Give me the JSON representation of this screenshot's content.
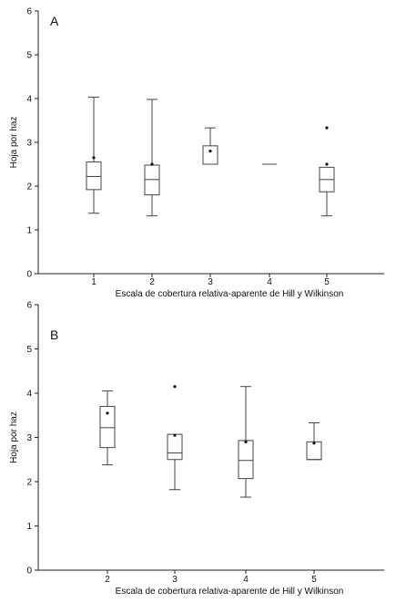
{
  "chart_data": [
    {
      "type": "box",
      "panel_label": "A",
      "xlabel": "Escala de cobertura relativa-aparente de Hill y Wilkinson",
      "ylabel": "Hoja por haz",
      "ylim": [
        0,
        6
      ],
      "y_ticks": [
        "0",
        "1",
        "2",
        "3",
        "4",
        "5",
        "6"
      ],
      "categories": [
        "1",
        "2",
        "3",
        "4",
        "5"
      ],
      "boxes": [
        {
          "category": "1",
          "min": 1.38,
          "q1": 1.92,
          "median": 2.22,
          "q3": 2.55,
          "max": 4.03,
          "mean": 2.65,
          "outliers": []
        },
        {
          "category": "2",
          "min": 1.32,
          "q1": 1.8,
          "median": 2.15,
          "q3": 2.48,
          "max": 3.98,
          "mean": 2.5,
          "outliers": []
        },
        {
          "category": "3",
          "min": 2.5,
          "q1": 2.5,
          "median": 2.5,
          "q3": 2.92,
          "max": 3.33,
          "mean": 2.8,
          "outliers": []
        },
        {
          "category": "4",
          "min": 2.5,
          "q1": 2.5,
          "median": 2.5,
          "q3": 2.5,
          "max": 2.5,
          "mean": null,
          "outliers": []
        },
        {
          "category": "5",
          "min": 1.32,
          "q1": 1.87,
          "median": 2.15,
          "q3": 2.43,
          "max": 2.43,
          "mean": null,
          "outliers": [
            2.5,
            3.33
          ]
        }
      ]
    },
    {
      "type": "box",
      "panel_label": "B",
      "xlabel": "Escala de cobertura relativa-aparente de Hill y Wilkinson",
      "ylabel": "Hoja por haz",
      "ylim": [
        0,
        6
      ],
      "y_ticks": [
        "0",
        "1",
        "2",
        "3",
        "4",
        "5",
        "6"
      ],
      "categories": [
        "2",
        "3",
        "4",
        "5"
      ],
      "boxes": [
        {
          "category": "2",
          "min": 2.38,
          "q1": 2.77,
          "median": 3.22,
          "q3": 3.7,
          "max": 4.05,
          "mean": 3.55,
          "outliers": []
        },
        {
          "category": "3",
          "min": 1.82,
          "q1": 2.5,
          "median": 2.65,
          "q3": 3.07,
          "max": 3.07,
          "mean": 3.05,
          "outliers": [
            4.15
          ]
        },
        {
          "category": "4",
          "min": 1.65,
          "q1": 2.07,
          "median": 2.48,
          "q3": 2.93,
          "max": 4.15,
          "mean": 2.9,
          "outliers": []
        },
        {
          "category": "5",
          "min": 2.5,
          "q1": 2.5,
          "median": 2.5,
          "q3": 2.9,
          "max": 3.33,
          "mean": 2.87,
          "outliers": []
        }
      ]
    }
  ]
}
